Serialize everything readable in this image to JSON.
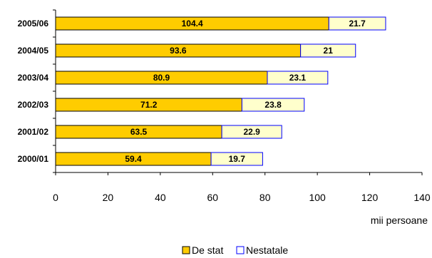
{
  "chart_data": {
    "type": "bar",
    "orientation": "horizontal",
    "stacked": true,
    "categories": [
      "2005/06",
      "2004/05",
      "2003/04",
      "2002/03",
      "2001/02",
      "2000/01"
    ],
    "series": [
      {
        "name": "De stat",
        "values": [
          104.4,
          93.6,
          80.9,
          71.2,
          63.5,
          59.4
        ],
        "color": "#FFCC00",
        "border": "#000000"
      },
      {
        "name": "Nestatale",
        "values": [
          21.7,
          21,
          23.1,
          23.8,
          22.9,
          19.7
        ],
        "color": "#FFFFCC",
        "border": "#0000FF"
      }
    ],
    "xlabel": "mii persoane",
    "xlim": [
      0,
      140
    ],
    "xticks": [
      0,
      20,
      40,
      60,
      80,
      100,
      120,
      140
    ],
    "grid": false,
    "legend": "bottom"
  }
}
